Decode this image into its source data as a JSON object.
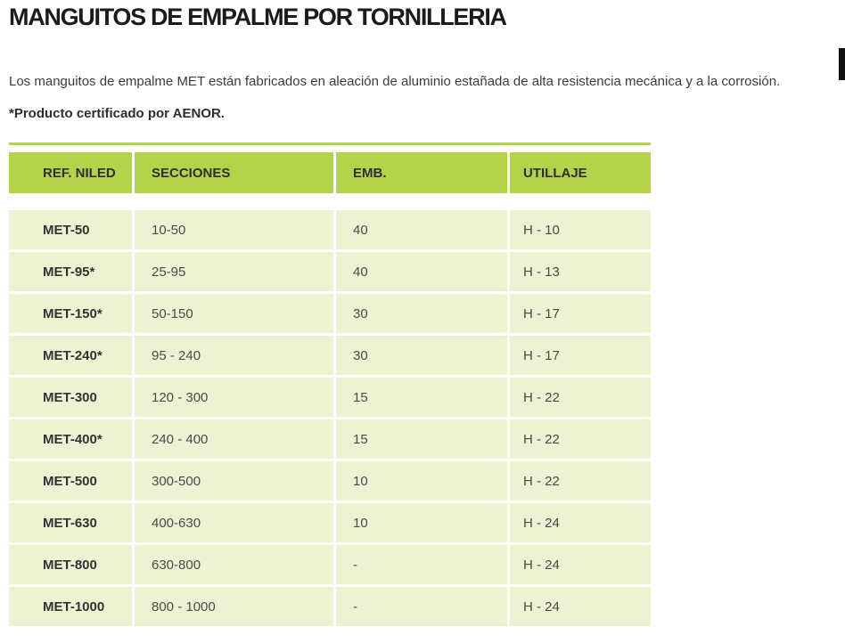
{
  "page": {
    "title": "MANGUITOS DE EMPALME POR TORNILLERIA",
    "intro_regular": "Los manguitos de empalme MET están fabricados en aleación de aluminio estañada de alta resistencia mecánica y a la corrosión. ",
    "intro_bold": "*Producto certificado por AENOR."
  },
  "colors": {
    "header_bg": "#b5d24b",
    "row_bg": "#edf2d3",
    "accent_line": "#b5d24b",
    "scrollbar_thumb": "#101010"
  },
  "table": {
    "columns": [
      "REF. NILED",
      "SECCIONES",
      "EMB.",
      "UTILLAJE"
    ],
    "rows": [
      [
        "MET-50",
        "10-50",
        "40",
        "H - 10"
      ],
      [
        "MET-95*",
        "25-95",
        "40",
        "H - 13"
      ],
      [
        "MET-150*",
        "50-150",
        "30",
        "H - 17"
      ],
      [
        "MET-240*",
        "95 - 240",
        "30",
        "H - 17"
      ],
      [
        "MET-300",
        "120 - 300",
        "15",
        "H - 22"
      ],
      [
        "MET-400*",
        "240 - 400",
        "15",
        "H - 22"
      ],
      [
        "MET-500",
        "300-500",
        "10",
        "H - 22"
      ],
      [
        "MET-630",
        "400-630",
        "10",
        "H - 24"
      ],
      [
        "MET-800",
        "630-800",
        "-",
        "H - 24"
      ],
      [
        "MET-1000",
        "800 - 1000",
        "-",
        "H - 24"
      ]
    ]
  }
}
